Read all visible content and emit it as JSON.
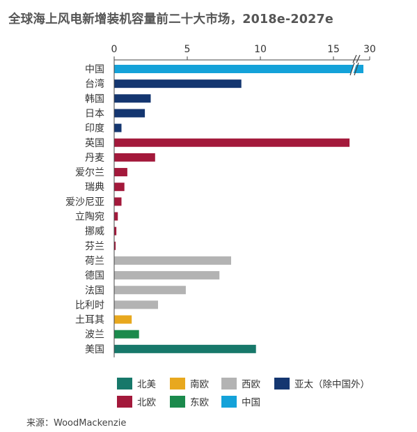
{
  "title": "全球海上风电新增装机容量前二十大市场，2018e-2027e",
  "source": "来源：WoodMackenzie",
  "colors": {
    "north_america": "#17786a",
    "south_europe": "#e8a81e",
    "west_europe": "#b3b3b3",
    "asia_pacific": "#143670",
    "north_europe": "#a3193b",
    "east_europe": "#1b8a4c",
    "china": "#14a2d9"
  },
  "legend": [
    {
      "key": "north_america",
      "label": "北美"
    },
    {
      "key": "south_europe",
      "label": "南欧"
    },
    {
      "key": "west_europe",
      "label": "西欧"
    },
    {
      "key": "asia_pacific",
      "label": "亚太（除中国外）"
    },
    {
      "key": "north_europe",
      "label": "北欧"
    },
    {
      "key": "east_europe",
      "label": "东欧"
    },
    {
      "key": "china",
      "label": "中国"
    }
  ],
  "chart_data": {
    "type": "bar",
    "orientation": "horizontal",
    "title": "全球海上风电新增装机容量前二十大市场，2018e-2027e",
    "x_ticks": [
      "0",
      "5",
      "10",
      "15",
      "30"
    ],
    "x_axis_break": {
      "from": 18,
      "to": 29
    },
    "xlim": [
      0,
      30
    ],
    "grid": false,
    "legend_position": "bottom",
    "categories": [
      "中国",
      "台湾",
      "韩国",
      "日本",
      "印度",
      "英国",
      "丹麦",
      "爱尔兰",
      "瑞典",
      "爱沙尼亚",
      "立陶宛",
      "挪威",
      "芬兰",
      "荷兰",
      "德国",
      "法国",
      "比利时",
      "土耳其",
      "波兰",
      "美国"
    ],
    "values": [
      29.3,
      8.7,
      2.5,
      2.1,
      0.5,
      16.1,
      2.8,
      0.9,
      0.7,
      0.5,
      0.25,
      0.15,
      0.1,
      8.0,
      7.2,
      4.9,
      3.0,
      1.2,
      1.7,
      9.7
    ],
    "region": [
      "china",
      "asia_pacific",
      "asia_pacific",
      "asia_pacific",
      "asia_pacific",
      "north_europe",
      "north_europe",
      "north_europe",
      "north_europe",
      "north_europe",
      "north_europe",
      "north_europe",
      "north_europe",
      "west_europe",
      "west_europe",
      "west_europe",
      "west_europe",
      "south_europe",
      "east_europe",
      "north_america"
    ]
  }
}
